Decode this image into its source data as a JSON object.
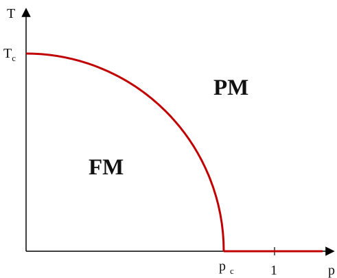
{
  "diagram": {
    "axes": {
      "y_label": "T",
      "x_label": "p"
    },
    "ticks": {
      "tc": {
        "main": "T",
        "sub": "c"
      },
      "pc": {
        "main": "p",
        "sub": "c"
      },
      "one": "1"
    },
    "regions": {
      "paramagnet": "PM",
      "ferromagnet": "FM"
    },
    "colors": {
      "axis": "#000000",
      "boundary": "#c00000",
      "text": "#111111"
    }
  }
}
